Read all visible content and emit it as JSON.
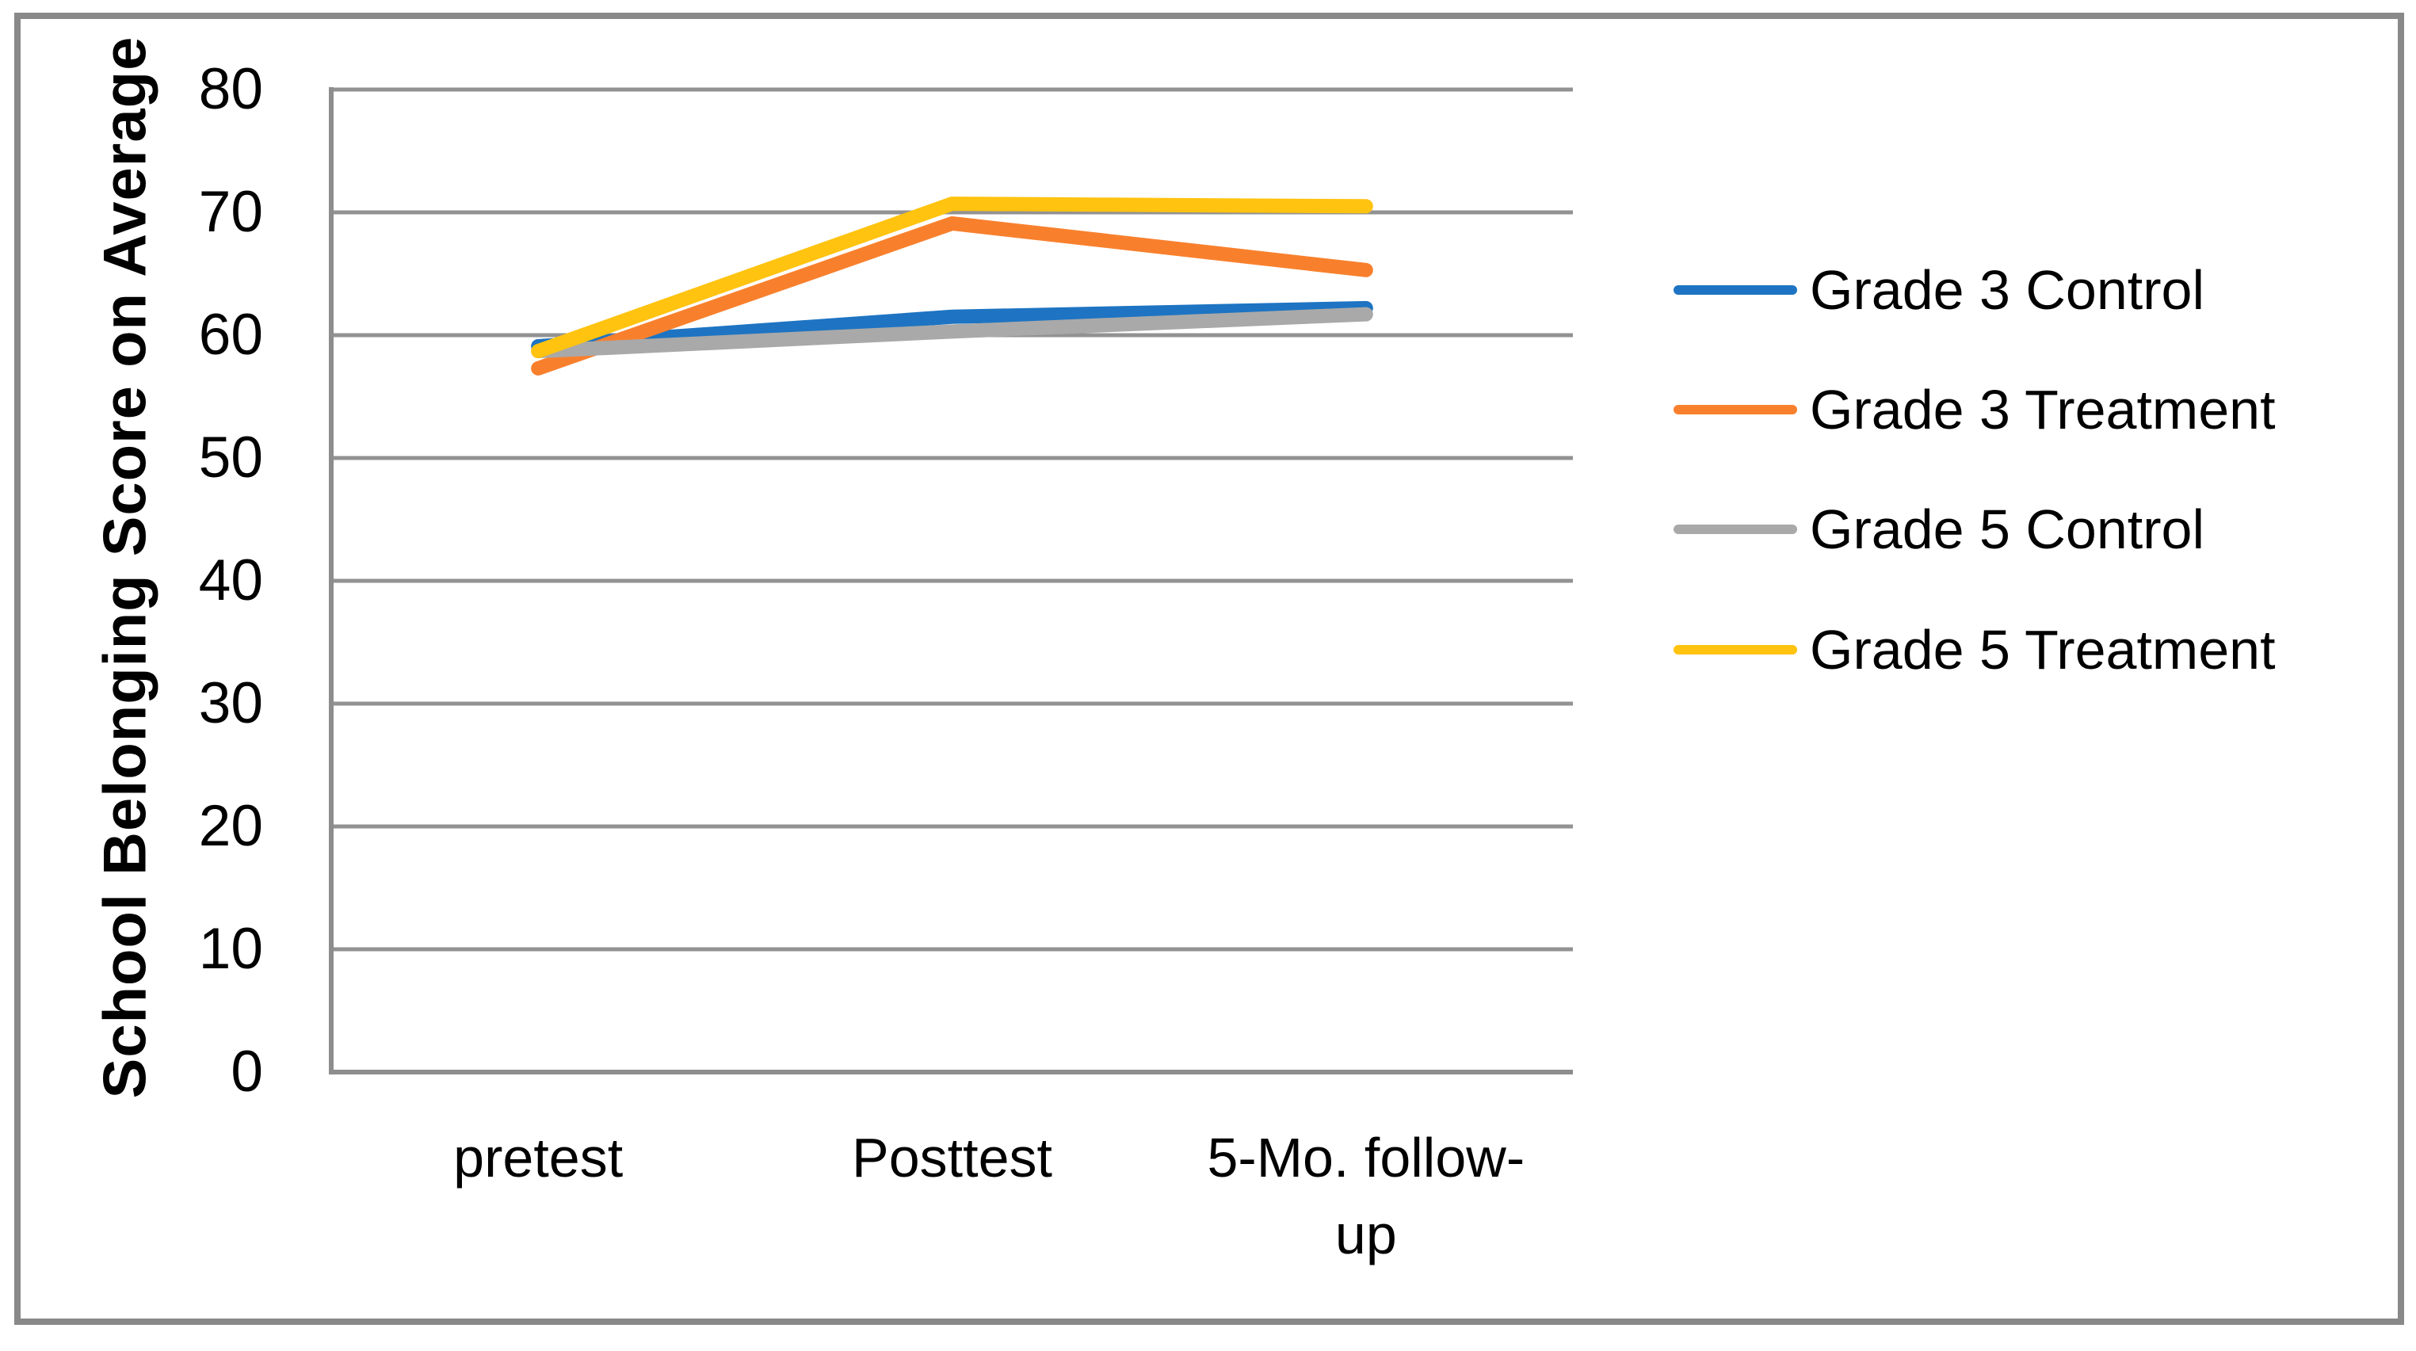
{
  "chart_data": {
    "type": "line",
    "title": "",
    "categories": [
      "pretest",
      "Posttest",
      "5-Mo. follow-up"
    ],
    "category_display": [
      "pretest",
      "Posttest",
      "5-Mo. follow-\nup"
    ],
    "series": [
      {
        "name": "Grade 3 Control",
        "color": "#1E74C2",
        "values": [
          59.1,
          61.5,
          62.2
        ]
      },
      {
        "name": "Grade 3 Treatment",
        "color": "#F8802D",
        "values": [
          57.3,
          69.1,
          65.3
        ]
      },
      {
        "name": "Grade 5 Control",
        "color": "#A9A9A9",
        "values": [
          58.7,
          60.3,
          61.7
        ]
      },
      {
        "name": "Grade 5 Treatment",
        "color": "#FFC310",
        "values": [
          58.7,
          70.7,
          70.5
        ]
      }
    ],
    "xlabel": "",
    "ylabel": "School Belonging Score on Average",
    "ylim": [
      0,
      80
    ],
    "yticks": [
      0,
      10,
      20,
      30,
      40,
      50,
      60,
      70,
      80
    ],
    "grid": true,
    "legend_position": "right"
  },
  "style": {
    "background": "#FFFFFF",
    "text_color": "#000000",
    "gridline_color": "#929292",
    "axis_color": "#8D8D8D",
    "border_color": "#898989"
  }
}
